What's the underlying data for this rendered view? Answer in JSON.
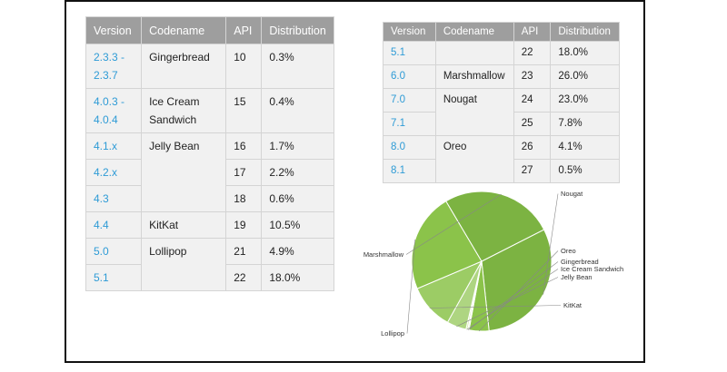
{
  "tables": [
    {
      "headers": [
        "Version",
        "Codename",
        "API",
        "Distribution"
      ],
      "rows": [
        {
          "version": "2.3.3 -\n2.3.7",
          "codename": "Gingerbread",
          "cspan": 1,
          "api": "10",
          "dist": "0.3%"
        },
        {
          "version": "4.0.3 -\n4.0.4",
          "codename": "Ice Cream\nSandwich",
          "cspan": 1,
          "api": "15",
          "dist": "0.4%"
        },
        {
          "version": "4.1.x",
          "codename": "Jelly Bean",
          "cspan": 3,
          "api": "16",
          "dist": "1.7%"
        },
        {
          "version": "4.2.x",
          "codename": null,
          "cspan": 0,
          "api": "17",
          "dist": "2.2%"
        },
        {
          "version": "4.3",
          "codename": null,
          "cspan": 0,
          "api": "18",
          "dist": "0.6%"
        },
        {
          "version": "4.4",
          "codename": "KitKat",
          "cspan": 1,
          "api": "19",
          "dist": "10.5%"
        },
        {
          "version": "5.0",
          "codename": "Lollipop",
          "cspan": 2,
          "api": "21",
          "dist": "4.9%"
        },
        {
          "version": "5.1",
          "codename": null,
          "cspan": 0,
          "api": "22",
          "dist": "18.0%"
        }
      ]
    },
    {
      "headers": [
        "Version",
        "Codename",
        "API",
        "Distribution"
      ],
      "rows": [
        {
          "version": "5.1",
          "codename": "",
          "cspan": 1,
          "api": "22",
          "dist": "18.0%"
        },
        {
          "version": "6.0",
          "codename": "Marshmallow",
          "cspan": 1,
          "api": "23",
          "dist": "26.0%"
        },
        {
          "version": "7.0",
          "codename": "Nougat",
          "cspan": 2,
          "api": "24",
          "dist": "23.0%"
        },
        {
          "version": "7.1",
          "codename": null,
          "cspan": 0,
          "api": "25",
          "dist": "7.8%"
        },
        {
          "version": "8.0",
          "codename": "Oreo",
          "cspan": 2,
          "api": "26",
          "dist": "4.1%"
        },
        {
          "version": "8.1",
          "codename": null,
          "cspan": 0,
          "api": "27",
          "dist": "0.5%"
        }
      ]
    }
  ],
  "chart_data": {
    "type": "pie",
    "slices": [
      {
        "label": "Nougat",
        "value": 30.8,
        "color": "#7cb342"
      },
      {
        "label": "Oreo",
        "value": 4.6,
        "color": "#8bc34a"
      },
      {
        "label": "Gingerbread",
        "value": 0.3,
        "color": "#e3f0c8"
      },
      {
        "label": "Ice Cream Sandwich",
        "value": 0.4,
        "color": "#d4e9ad"
      },
      {
        "label": "Jelly Bean",
        "value": 4.5,
        "color": "#aed581"
      },
      {
        "label": "KitKat",
        "value": 10.5,
        "color": "#9ccc65"
      },
      {
        "label": "Lollipop",
        "value": 22.9,
        "color": "#8bc34a"
      },
      {
        "label": "Marshmallow",
        "value": 26.0,
        "color": "#7cb342"
      }
    ],
    "start_angle_deg": -27
  }
}
